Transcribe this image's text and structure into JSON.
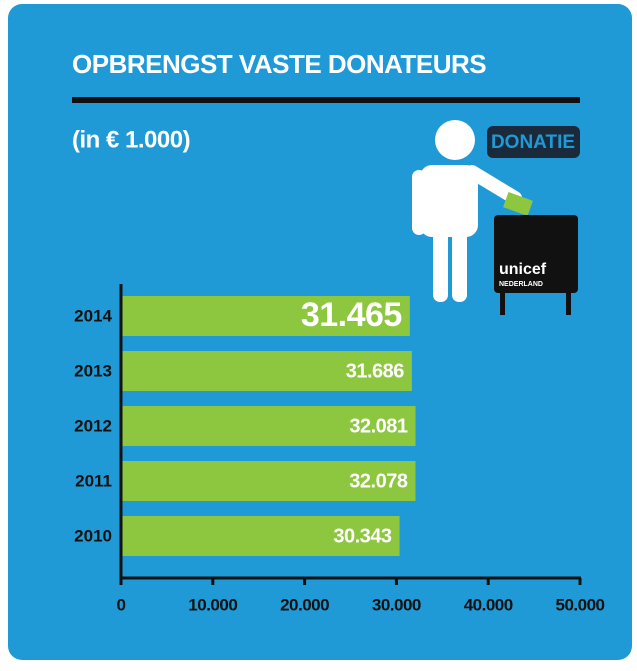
{
  "chart_data": {
    "type": "barh",
    "title": "OPBRENGST VASTE DONATEURS",
    "subtitle": "(in € 1.000)",
    "annotations": [
      "DONATIE",
      "unicef",
      "NEDERLAND"
    ],
    "categories": [
      "2014",
      "2013",
      "2012",
      "2011",
      "2010"
    ],
    "values": [
      31465,
      31686,
      32081,
      32078,
      30343
    ],
    "value_labels": [
      "31.465",
      "31.686",
      "32.081",
      "32.078",
      "30.343"
    ],
    "color": "#8dc63f",
    "xlim": [
      0,
      50000
    ],
    "xticks": [
      0,
      {
        "value": 10000,
        "label": "10.000"
      },
      {
        "value": 20000,
        "label": "20.000"
      },
      {
        "value": 30000,
        "label": "30.000"
      },
      {
        "value": 40000,
        "label": "40.000"
      },
      {
        "value": 50000,
        "label": "50.000"
      }
    ]
  }
}
